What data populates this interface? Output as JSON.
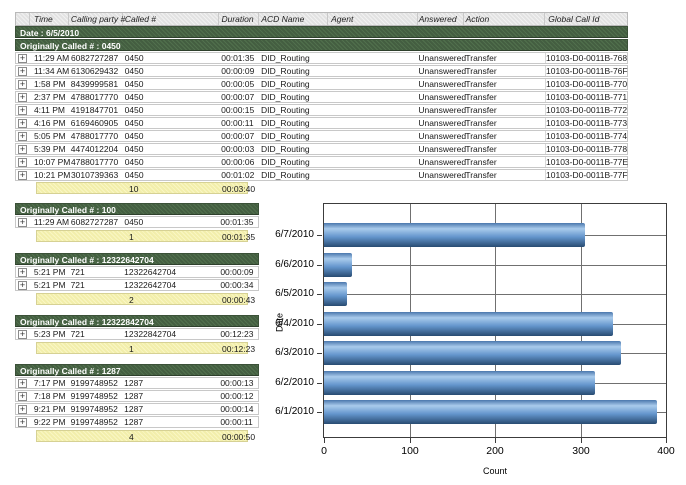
{
  "table": {
    "columns": [
      "Time",
      "Calling party #",
      "Called #",
      "Duration",
      "ACD Name",
      "Agent",
      "Answered",
      "Action",
      "Global Call Id"
    ],
    "date_band": "Date : 6/5/2010",
    "expand_icon": "+",
    "groups": [
      {
        "header": "Originally Called # : 0450",
        "rows": [
          [
            "11:29 AM",
            "6082727287",
            "0450",
            "00:01:35",
            "DID_Routing",
            "",
            "Unanswered",
            "Transfer",
            "10103-D0-0011B-768"
          ],
          [
            "11:34 AM",
            "6130629432",
            "0450",
            "00:00:09",
            "DID_Routing",
            "",
            "Unanswered",
            "Transfer",
            "10103-D0-0011B-76F"
          ],
          [
            "1:58 PM",
            "8439999581",
            "0450",
            "00:00:05",
            "DID_Routing",
            "",
            "Unanswered",
            "Transfer",
            "10103-D0-0011B-770"
          ],
          [
            "2:37 PM",
            "4788017770",
            "0450",
            "00:00:07",
            "DID_Routing",
            "",
            "Unanswered",
            "Transfer",
            "10103-D0-0011B-771"
          ],
          [
            "4:11 PM",
            "4191847701",
            "0450",
            "00:00:15",
            "DID_Routing",
            "",
            "Unanswered",
            "Transfer",
            "10103-D0-0011B-772"
          ],
          [
            "4:16 PM",
            "6169460905",
            "0450",
            "00:00:11",
            "DID_Routing",
            "",
            "Unanswered",
            "Transfer",
            "10103-D0-0011B-773"
          ],
          [
            "5:05 PM",
            "4788017770",
            "0450",
            "00:00:07",
            "DID_Routing",
            "",
            "Unanswered",
            "Transfer",
            "10103-D0-0011B-774"
          ],
          [
            "5:39 PM",
            "4474012204",
            "0450",
            "00:00:03",
            "DID_Routing",
            "",
            "Unanswered",
            "Transfer",
            "10103-D0-0011B-778"
          ],
          [
            "10:07 PM",
            "4788017770",
            "0450",
            "00:00:06",
            "DID_Routing",
            "",
            "Unanswered",
            "Transfer",
            "10103-D0-0011B-77E"
          ],
          [
            "10:21 PM",
            "3010739363",
            "0450",
            "00:01:02",
            "DID_Routing",
            "",
            "Unanswered",
            "Transfer",
            "10103-D0-0011B-77F"
          ]
        ],
        "summary": {
          "count": "10",
          "duration": "00:03:40"
        }
      },
      {
        "header": "Originally Called # : 100",
        "rows": [
          [
            "11:29 AM",
            "6082727287",
            "0450",
            "00:01:35"
          ]
        ],
        "summary": {
          "count": "1",
          "duration": "00:01:35"
        }
      },
      {
        "header": "Originally Called # : 12322642704",
        "rows": [
          [
            "5:21 PM",
            "721",
            "12322642704",
            "00:00:09"
          ],
          [
            "5:21 PM",
            "721",
            "12322642704",
            "00:00:34"
          ]
        ],
        "summary": {
          "count": "2",
          "duration": "00:00:43"
        }
      },
      {
        "header": "Originally Called # : 12322842704",
        "rows": [
          [
            "5:23 PM",
            "721",
            "12322842704",
            "00:12:23"
          ]
        ],
        "summary": {
          "count": "1",
          "duration": "00:12:23"
        }
      },
      {
        "header": "Originally Called # : 1287",
        "rows": [
          [
            "7:17 PM",
            "9199748952",
            "1287",
            "00:00:13"
          ],
          [
            "7:18 PM",
            "9199748952",
            "1287",
            "00:00:12"
          ],
          [
            "9:21 PM",
            "9199748952",
            "1287",
            "00:00:14"
          ],
          [
            "9:22 PM",
            "9199748952",
            "1287",
            "00:00:11"
          ]
        ],
        "summary": {
          "count": "4",
          "duration": "00:00:50"
        }
      }
    ],
    "colors": {
      "group_band": "#4a6347",
      "summary_row": "#f6f3b8"
    }
  },
  "chart_data": {
    "type": "bar",
    "orientation": "horizontal",
    "categories": [
      "6/7/2010",
      "6/6/2010",
      "6/5/2010",
      "6/4/2010",
      "6/3/2010",
      "6/2/2010",
      "6/1/2010"
    ],
    "values": [
      305,
      33,
      27,
      338,
      347,
      317,
      390
    ],
    "title": "",
    "xlabel": "Count",
    "ylabel": "Date",
    "xlim": [
      0,
      400
    ],
    "xticks": [
      0,
      100,
      200,
      300,
      400
    ],
    "grid": "on",
    "bar_colors": [
      "#4a77ad",
      "#a9cbec",
      "#6495cc",
      "#284b72"
    ]
  }
}
